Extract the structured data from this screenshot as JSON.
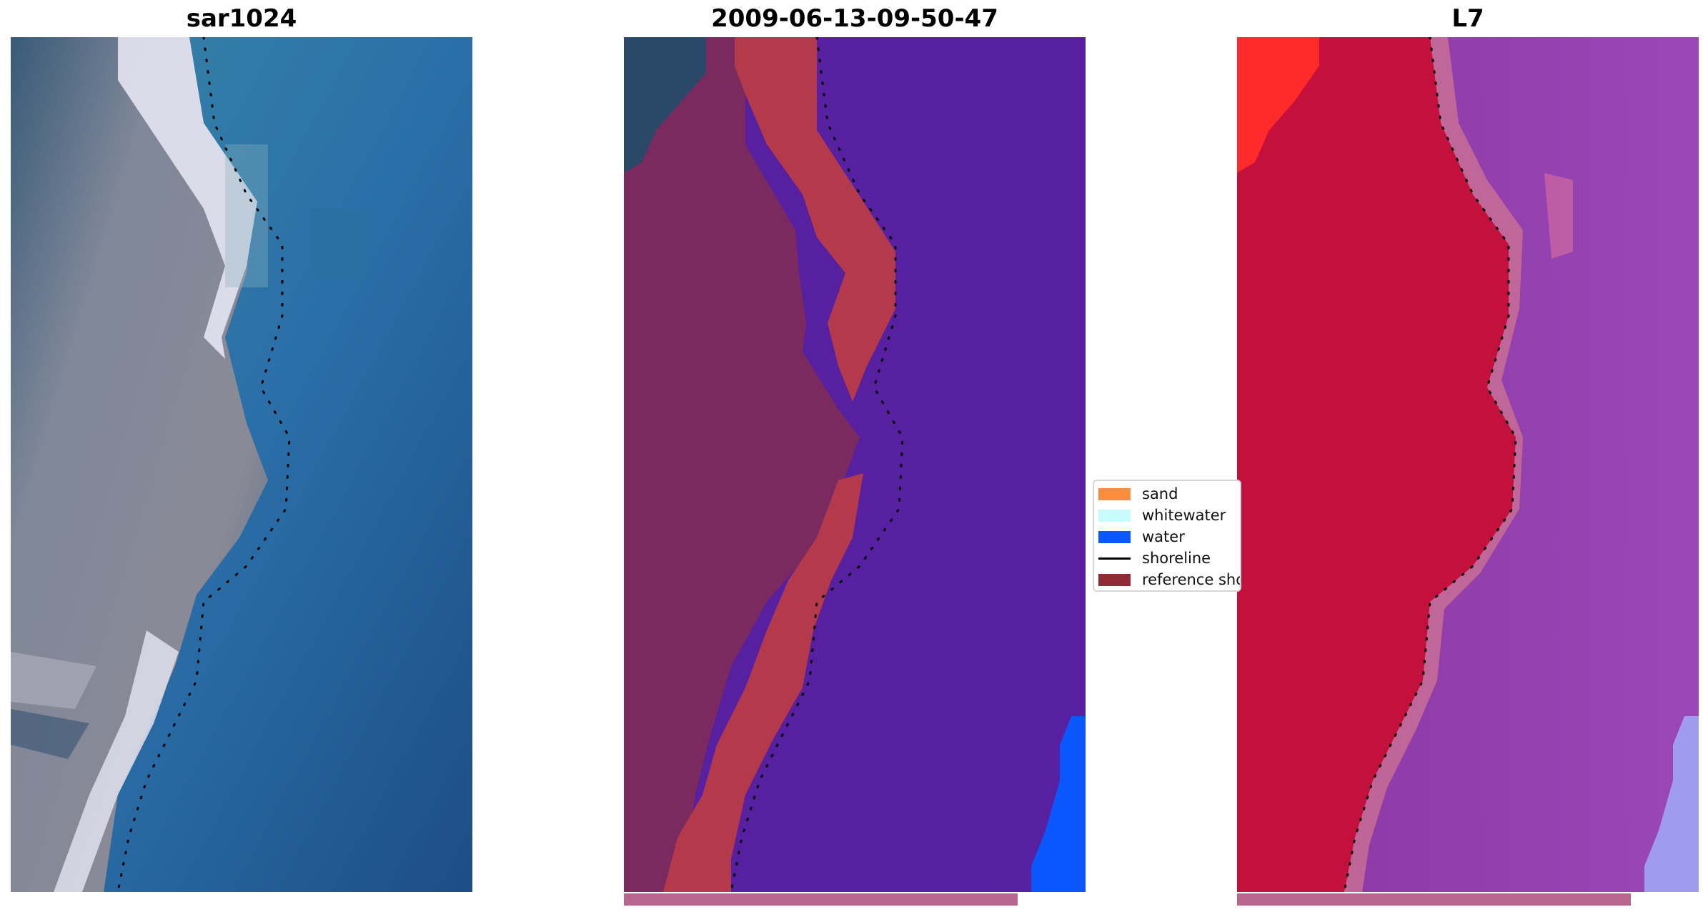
{
  "panels": [
    {
      "title": "sar1024",
      "image": "true-color satellite image"
    },
    {
      "title": "2009-06-13-09-50-47",
      "image": "classified image overlay"
    },
    {
      "title": "L7",
      "image": "false-color image"
    }
  ],
  "legend": {
    "items": [
      {
        "label": "sand",
        "kind": "patch",
        "color": "#ff8c3a"
      },
      {
        "label": "whitewater",
        "kind": "patch",
        "color": "#c8fbfb"
      },
      {
        "label": "water",
        "kind": "patch",
        "color": "#0a57ff"
      },
      {
        "label": "shoreline",
        "kind": "line",
        "color": "#000000"
      },
      {
        "label": "reference shoreline",
        "kind": "patch",
        "color": "#922a35"
      }
    ]
  },
  "colors": {
    "sand_overlay": "#b43a4b",
    "water_overlay": "#5620a0",
    "water_class": "#0a57ff",
    "land_overlay": "#7a2a5e",
    "false_color_land": "#c4103c",
    "false_color_water": "#8a35a2",
    "reference_bar": "#b8668e"
  }
}
